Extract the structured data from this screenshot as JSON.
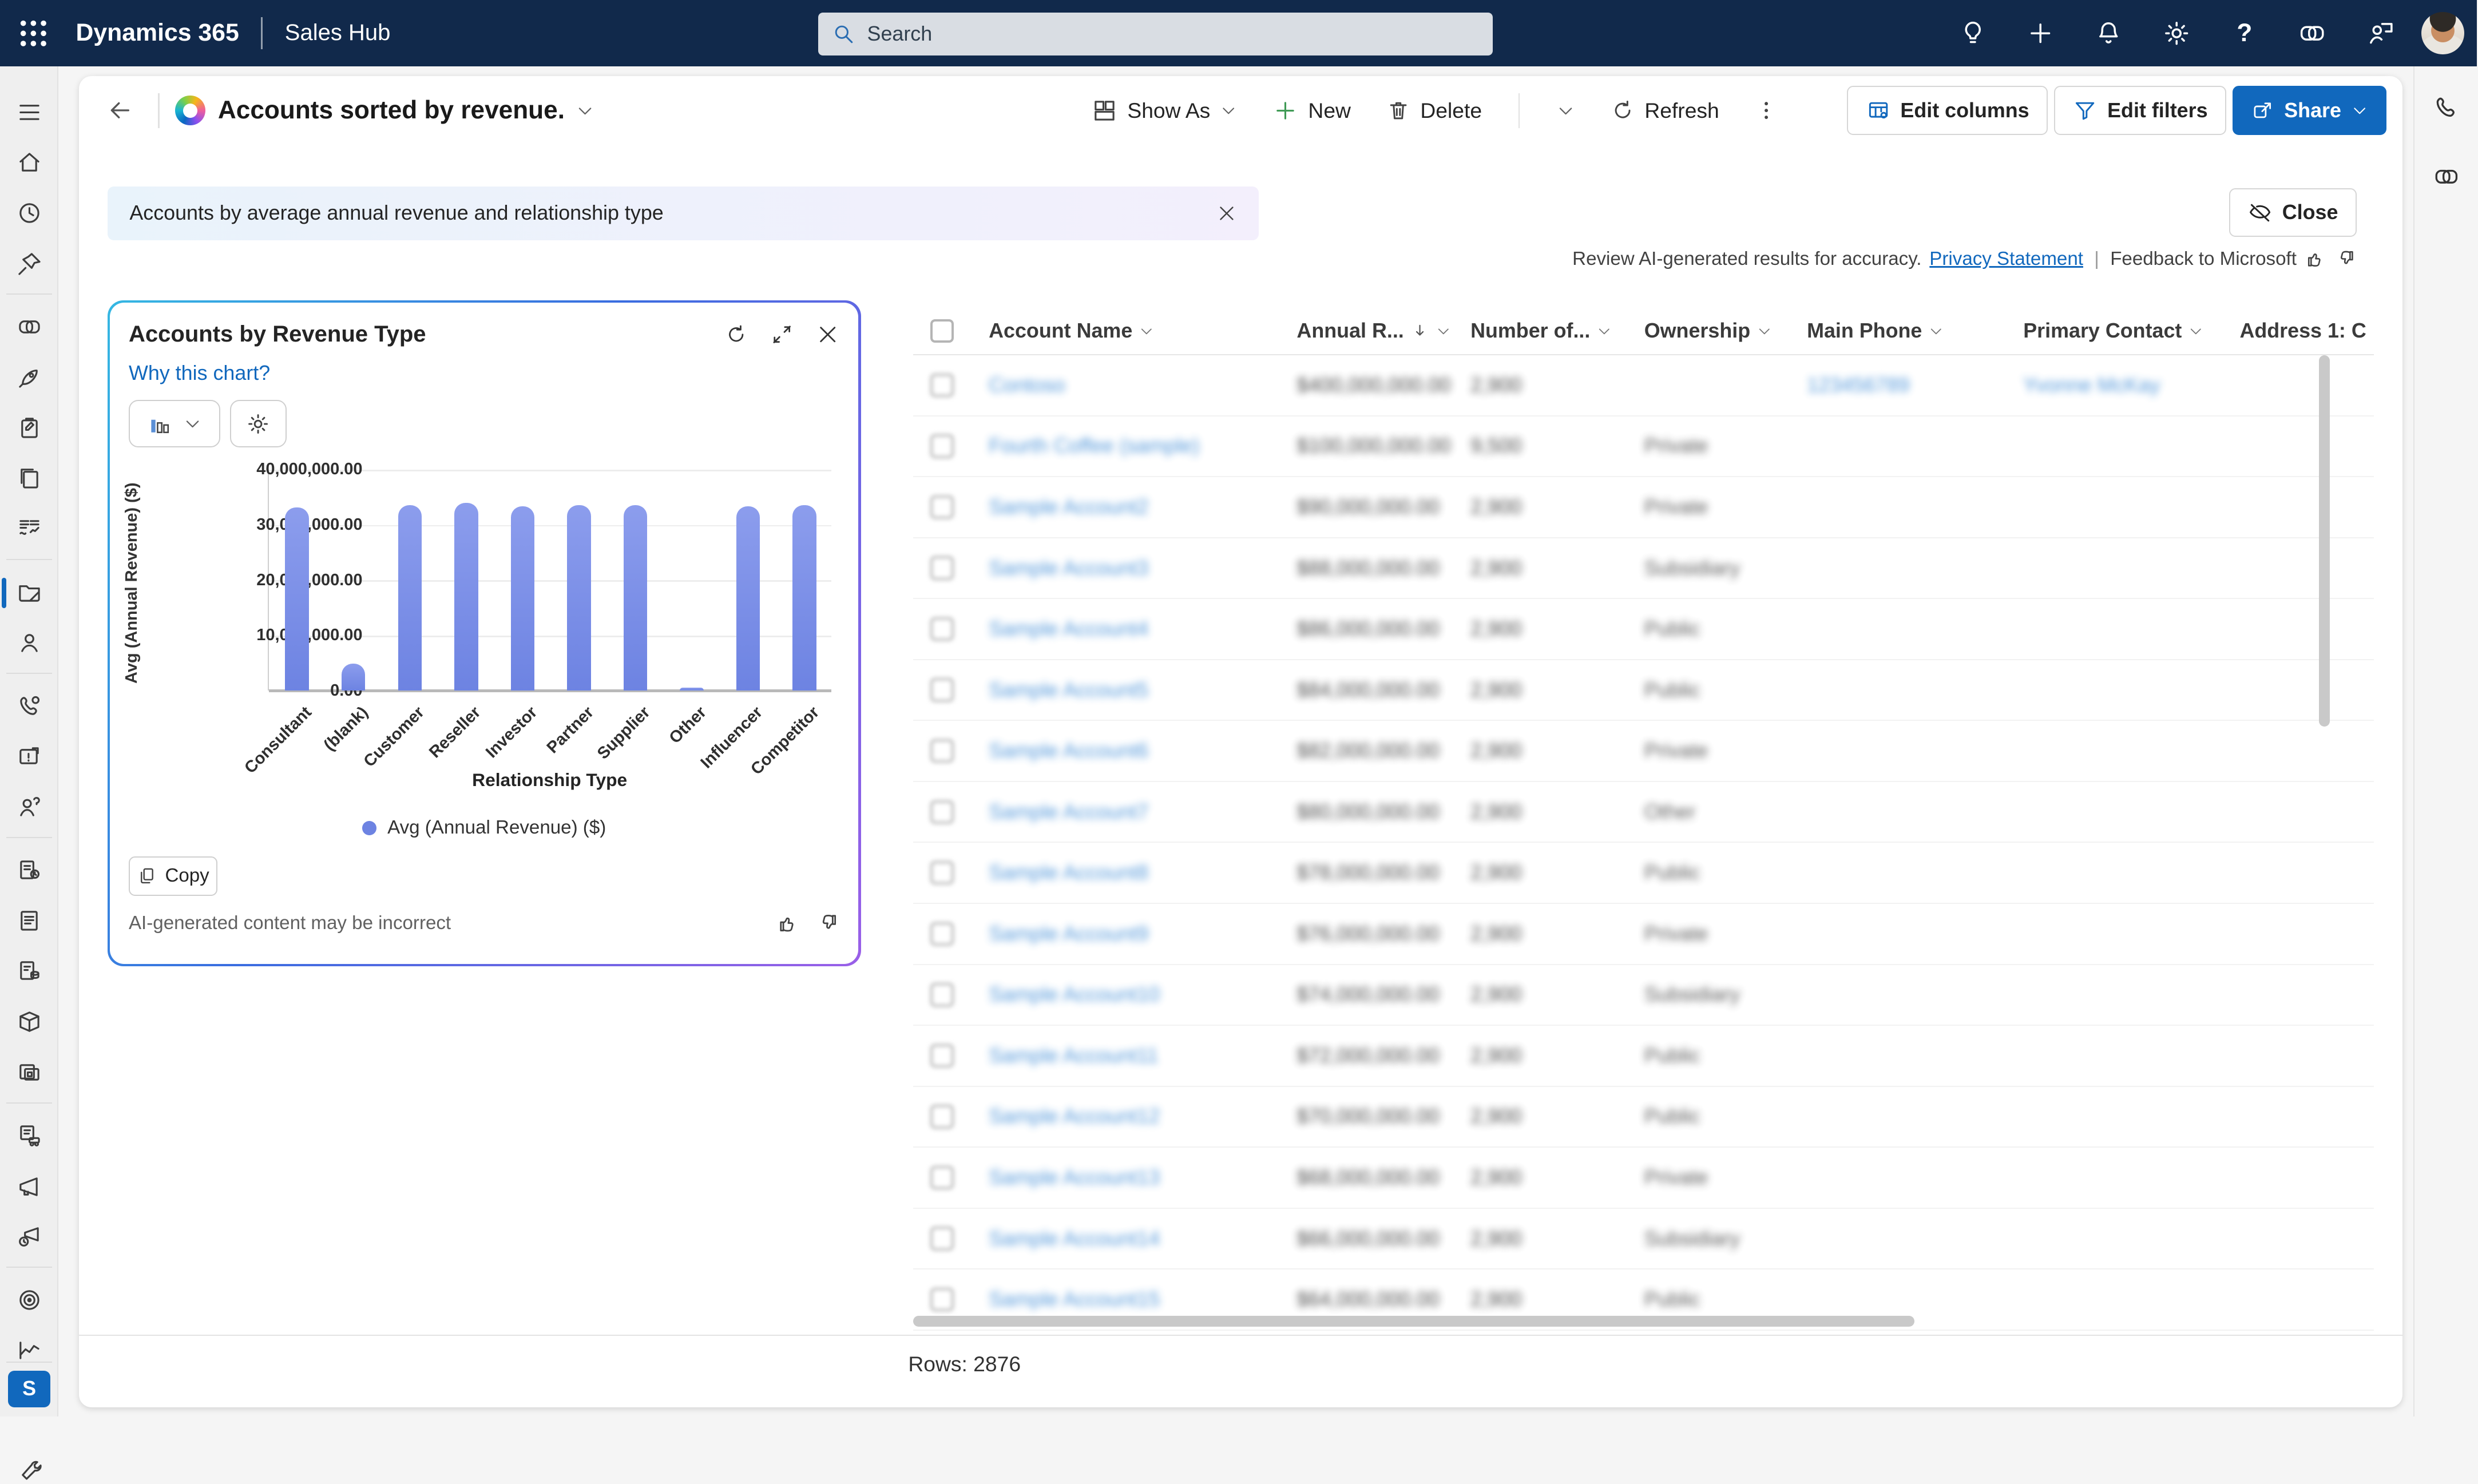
{
  "topbar": {
    "brand": "Dynamics 365",
    "app_name": "Sales Hub",
    "search_placeholder": "Search",
    "icons": [
      "waffle-icon",
      "lightbulb-icon",
      "plus-icon",
      "bell-icon",
      "gear-icon",
      "help-icon",
      "copilot-icon",
      "presenter-icon",
      "avatar"
    ]
  },
  "command_bar": {
    "title": "Accounts sorted by revenue.",
    "show_as": "Show As",
    "new": "New",
    "delete": "Delete",
    "refresh": "Refresh",
    "edit_columns": "Edit columns",
    "edit_filters": "Edit filters",
    "share": "Share"
  },
  "ai_banner": {
    "summary": "Accounts by average annual revenue and relationship type",
    "close": "Close",
    "review_text": "Review AI-generated results for accuracy.",
    "privacy_link": "Privacy Statement",
    "pipe": "|",
    "feedback_link": "Feedback to Microsoft"
  },
  "chart_panel": {
    "title": "Accounts by Revenue Type",
    "why_link": "Why this chart?",
    "copy": "Copy",
    "ai_note": "AI-generated content may be incorrect"
  },
  "chart_data": {
    "type": "bar",
    "title": "Accounts by Revenue Type",
    "categories": [
      "Consultant",
      "(blank)",
      "Customer",
      "Reseller",
      "Investor",
      "Partner",
      "Supplier",
      "Other",
      "Influencer",
      "Competitor"
    ],
    "values": [
      33200000,
      4900000,
      33600000,
      34000000,
      33400000,
      33600000,
      33600000,
      350000,
      33400000,
      33600000
    ],
    "xlabel": "Relationship Type",
    "ylabel": "Avg (Annual Revenue) ($)",
    "legend": [
      "Avg (Annual Revenue) ($)"
    ],
    "ylim": [
      0,
      40000000
    ],
    "yticks": [
      "0.00",
      "10,000,000.00",
      "20,000,000.00",
      "30,000,000.00",
      "40,000,000.00"
    ],
    "grid": true,
    "legend_position": "bottom",
    "bar_color": "#6d83e2"
  },
  "table": {
    "redacted": true,
    "columns": [
      {
        "label": "Account Name",
        "sorted": ""
      },
      {
        "label": "Annual R...",
        "sorted": "desc"
      },
      {
        "label": "Number of...",
        "sorted": ""
      },
      {
        "label": "Ownership",
        "sorted": ""
      },
      {
        "label": "Main Phone",
        "sorted": ""
      },
      {
        "label": "Primary Contact",
        "sorted": ""
      },
      {
        "label": "Address 1: C",
        "sorted": "",
        "clipped": true
      }
    ],
    "rows": [
      {
        "name": "Contoso",
        "revenue": "$400,000,000.00",
        "count": "2,900",
        "ownership": "",
        "phone": "123456789",
        "contact": "Yvonne McKay"
      },
      {
        "name": "Fourth Coffee (sample)",
        "revenue": "$100,000,000.00",
        "count": "9,500",
        "ownership": "Private",
        "phone": "",
        "contact": ""
      },
      {
        "name": "Sample Account2",
        "revenue": "$90,000,000.00",
        "count": "2,900",
        "ownership": "Private",
        "phone": "",
        "contact": ""
      },
      {
        "name": "Sample Account3",
        "revenue": "$88,000,000.00",
        "count": "2,900",
        "ownership": "Subsidiary",
        "phone": "",
        "contact": ""
      },
      {
        "name": "Sample Account4",
        "revenue": "$86,000,000.00",
        "count": "2,900",
        "ownership": "Public",
        "phone": "",
        "contact": ""
      },
      {
        "name": "Sample Account5",
        "revenue": "$84,000,000.00",
        "count": "2,900",
        "ownership": "Public",
        "phone": "",
        "contact": ""
      },
      {
        "name": "Sample Account6",
        "revenue": "$82,000,000.00",
        "count": "2,900",
        "ownership": "Private",
        "phone": "",
        "contact": ""
      },
      {
        "name": "Sample Account7",
        "revenue": "$80,000,000.00",
        "count": "2,900",
        "ownership": "Other",
        "phone": "",
        "contact": ""
      },
      {
        "name": "Sample Account8",
        "revenue": "$78,000,000.00",
        "count": "2,900",
        "ownership": "Public",
        "phone": "",
        "contact": ""
      },
      {
        "name": "Sample Account9",
        "revenue": "$76,000,000.00",
        "count": "2,900",
        "ownership": "Private",
        "phone": "",
        "contact": ""
      },
      {
        "name": "Sample Account10",
        "revenue": "$74,000,000.00",
        "count": "2,900",
        "ownership": "Subsidiary",
        "phone": "",
        "contact": ""
      },
      {
        "name": "Sample Account11",
        "revenue": "$72,000,000.00",
        "count": "2,900",
        "ownership": "Public",
        "phone": "",
        "contact": ""
      },
      {
        "name": "Sample Account12",
        "revenue": "$70,000,000.00",
        "count": "2,900",
        "ownership": "Public",
        "phone": "",
        "contact": ""
      },
      {
        "name": "Sample Account13",
        "revenue": "$68,000,000.00",
        "count": "2,900",
        "ownership": "Private",
        "phone": "",
        "contact": ""
      },
      {
        "name": "Sample Account14",
        "revenue": "$66,000,000.00",
        "count": "2,900",
        "ownership": "Subsidiary",
        "phone": "",
        "contact": ""
      },
      {
        "name": "Sample Account15",
        "revenue": "$64,000,000.00",
        "count": "2,900",
        "ownership": "Public",
        "phone": "",
        "contact": ""
      }
    ],
    "rows_label": "Rows: 2876"
  },
  "sidebar": {
    "icons": [
      "menu-icon",
      "home-icon",
      "recent-icon",
      "pin-icon",
      "copilot-icon",
      "sales-accelerator-icon",
      "activities-icon",
      "dashboards-icon",
      "metrics-icon",
      "accounts-icon",
      "contacts-icon",
      "phone-calls-icon",
      "cases-icon",
      "competitors-icon",
      "quotes-icon",
      "orders-icon",
      "invoices-icon",
      "products-icon",
      "sales-literature-icon",
      "shipments-icon",
      "marketing-lists-icon",
      "quick-campaigns-icon",
      "goals-icon",
      "forecasts-icon",
      "app-settings-icon"
    ],
    "active": "accounts-icon",
    "area_badge": "S"
  },
  "right_rail": {
    "icons": [
      "phone-icon",
      "copilot-icon"
    ]
  },
  "accent_color": "#1168bd",
  "topbar_color": "#11294b"
}
